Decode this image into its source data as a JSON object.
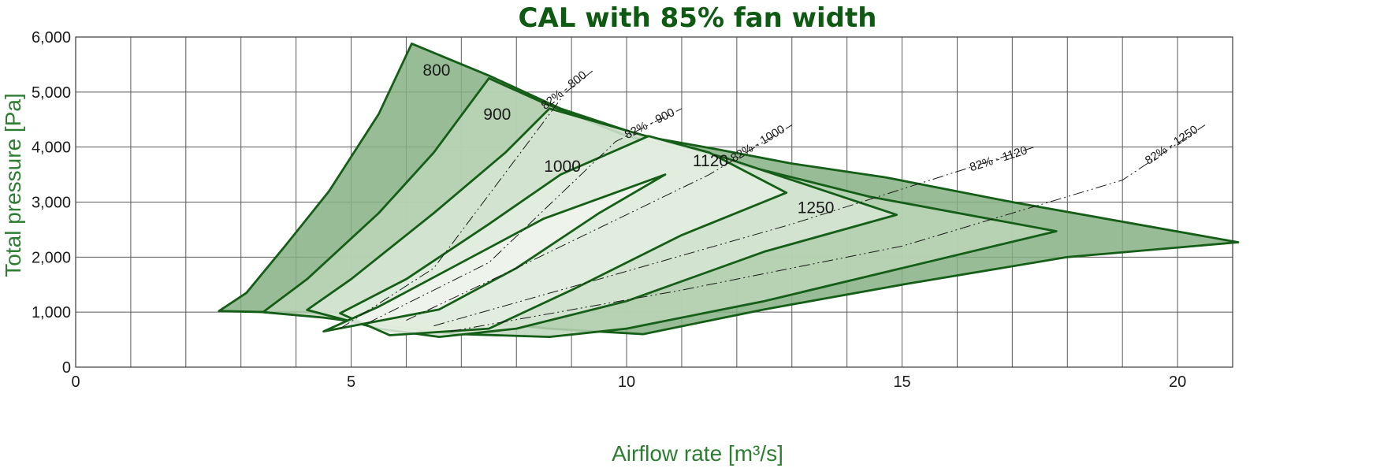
{
  "chart_data": {
    "type": "area",
    "title": "CAL with 85% fan width",
    "xlabel": "Airflow rate [m³/s]",
    "ylabel": "Total pressure [Pa]",
    "xlim": [
      0,
      21
    ],
    "ylim": [
      0,
      6000
    ],
    "x_ticks": [
      0,
      1,
      2,
      3,
      4,
      5,
      6,
      7,
      8,
      9,
      10,
      11,
      12,
      13,
      14,
      15,
      16,
      17,
      18,
      19,
      20,
      21
    ],
    "x_tick_labels": [
      {
        "value": 0,
        "label": "0"
      },
      {
        "value": 5,
        "label": "5"
      },
      {
        "value": 10,
        "label": "10"
      },
      {
        "value": 15,
        "label": "15"
      },
      {
        "value": 20,
        "label": "20"
      }
    ],
    "y_ticks": [
      {
        "value": 0,
        "label": "0"
      },
      {
        "value": 1000,
        "label": "1,000"
      },
      {
        "value": 2000,
        "label": "2,000"
      },
      {
        "value": 3000,
        "label": "3,000"
      },
      {
        "value": 4000,
        "label": "4,000"
      },
      {
        "value": 5000,
        "label": "5,000"
      },
      {
        "value": 6000,
        "label": "6,000"
      }
    ],
    "grid": true,
    "legend": "none",
    "series": [
      {
        "label": "800",
        "label_at": [
          6.3,
          5300
        ],
        "fill": "#86b284",
        "polygon": [
          [
            2.6,
            1020
          ],
          [
            3.1,
            1350
          ],
          [
            3.8,
            2200
          ],
          [
            4.6,
            3200
          ],
          [
            5.5,
            4600
          ],
          [
            6.1,
            5880
          ],
          [
            7.5,
            5300
          ],
          [
            8.8,
            4700
          ],
          [
            10.3,
            4200
          ],
          [
            11.7,
            3950
          ],
          [
            13.0,
            3700
          ],
          [
            14.7,
            3450
          ],
          [
            17.0,
            3000
          ],
          [
            21.1,
            2270
          ],
          [
            18.0,
            2000
          ],
          [
            15.0,
            1500
          ],
          [
            12.5,
            1050
          ],
          [
            10.3,
            600
          ],
          [
            8.6,
            700
          ],
          [
            7.0,
            850
          ],
          [
            5.0,
            1000
          ],
          [
            3.5,
            1000
          ]
        ]
      },
      {
        "label": "900",
        "label_at": [
          7.4,
          4500
        ],
        "fill": "#bcd5b8",
        "polygon": [
          [
            3.4,
            1000
          ],
          [
            4.2,
            1600
          ],
          [
            5.5,
            2800
          ],
          [
            6.5,
            3900
          ],
          [
            7.5,
            5250
          ],
          [
            8.5,
            4800
          ],
          [
            10.0,
            4200
          ],
          [
            12.0,
            3700
          ],
          [
            14.4,
            3100
          ],
          [
            17.8,
            2470
          ],
          [
            15.0,
            1800
          ],
          [
            12.5,
            1200
          ],
          [
            10.0,
            700
          ],
          [
            8.6,
            550
          ],
          [
            7.0,
            600
          ],
          [
            6.0,
            700
          ],
          [
            4.5,
            900
          ]
        ]
      },
      {
        "label": "1000",
        "label_at": [
          8.5,
          3550
        ],
        "fill": "#d7e6d3",
        "polygon": [
          [
            4.2,
            1040
          ],
          [
            5.0,
            1600
          ],
          [
            6.5,
            2800
          ],
          [
            7.8,
            3900
          ],
          [
            8.6,
            4700
          ],
          [
            10.0,
            4300
          ],
          [
            11.8,
            3800
          ],
          [
            14.9,
            2770
          ],
          [
            12.5,
            2100
          ],
          [
            10.0,
            1200
          ],
          [
            8.0,
            700
          ],
          [
            6.6,
            550
          ],
          [
            5.5,
            700
          ]
        ]
      },
      {
        "label": "1120",
        "label_at": [
          11.2,
          3650
        ],
        "fill": "#e4eee1",
        "polygon": [
          [
            4.8,
            980
          ],
          [
            6.0,
            1600
          ],
          [
            7.5,
            2600
          ],
          [
            8.8,
            3500
          ],
          [
            10.4,
            4200
          ],
          [
            11.5,
            3900
          ],
          [
            12.9,
            3170
          ],
          [
            11.0,
            2400
          ],
          [
            9.0,
            1400
          ],
          [
            7.5,
            700
          ],
          [
            5.7,
            580
          ]
        ]
      },
      {
        "label": "1250",
        "label_at": [
          13.1,
          2800
        ],
        "fill": "#f0f5ee",
        "polygon": [
          [
            4.5,
            650
          ],
          [
            5.5,
            1100
          ],
          [
            7.0,
            1900
          ],
          [
            8.5,
            2700
          ],
          [
            10.7,
            3500
          ],
          [
            9.5,
            2800
          ],
          [
            8.0,
            1800
          ],
          [
            6.6,
            1050
          ]
        ]
      }
    ],
    "reference_lines": [
      {
        "label": "82% - 800",
        "points": [
          [
            4.8,
            700
          ],
          [
            6.5,
            1800
          ],
          [
            8.9,
            5000
          ],
          [
            9.4,
            5400
          ]
        ]
      },
      {
        "label": "82% - 900",
        "points": [
          [
            5.3,
            800
          ],
          [
            7.5,
            1900
          ],
          [
            9.8,
            4100
          ],
          [
            11.0,
            4700
          ]
        ]
      },
      {
        "label": "82% - 1000",
        "points": [
          [
            6.0,
            850
          ],
          [
            8.0,
            1800
          ],
          [
            11.5,
            3500
          ],
          [
            13.0,
            4400
          ]
        ]
      },
      {
        "label": "82% - 1120",
        "points": [
          [
            6.5,
            750
          ],
          [
            9.5,
            1600
          ],
          [
            13.0,
            2600
          ],
          [
            17.4,
            4000
          ]
        ]
      },
      {
        "label": "82% - 1250",
        "points": [
          [
            6.8,
            650
          ],
          [
            11.0,
            1400
          ],
          [
            15.0,
            2200
          ],
          [
            19.0,
            3400
          ],
          [
            20.5,
            4400
          ]
        ]
      }
    ]
  }
}
